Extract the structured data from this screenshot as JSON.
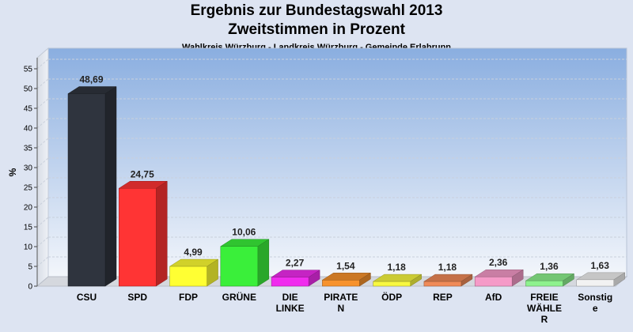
{
  "chart_data": {
    "type": "bar",
    "title": [
      "Ergebnis zur Bundestagswahl 2013",
      "Zweitstimmen in Prozent"
    ],
    "subtitle": "Wahlkreis Würzburg - Landkreis Würzburg - Gemeinde Erlabrunn",
    "ylabel": "%",
    "ylim": [
      0,
      55
    ],
    "yticks": [
      0,
      5,
      10,
      15,
      20,
      25,
      30,
      35,
      40,
      45,
      50,
      55
    ],
    "grid": true,
    "legend": "none",
    "bars": [
      {
        "category": [
          "CSU"
        ],
        "value": 48.69,
        "label": "48,69",
        "color": "#2f343e"
      },
      {
        "category": [
          "SPD"
        ],
        "value": 24.75,
        "label": "24,75",
        "color": "#ff3434"
      },
      {
        "category": [
          "FDP"
        ],
        "value": 4.99,
        "label": "4,99",
        "color": "#ffff33"
      },
      {
        "category": [
          "GRÜNE"
        ],
        "value": 10.06,
        "label": "10,06",
        "color": "#3aef3a"
      },
      {
        "category": [
          "DIE",
          "LINKE"
        ],
        "value": 2.27,
        "label": "2,27",
        "color": "#f02cee"
      },
      {
        "category": [
          "PIRATE",
          "N"
        ],
        "value": 1.54,
        "label": "1,54",
        "color": "#f7922d"
      },
      {
        "category": [
          "ÖDP"
        ],
        "value": 1.18,
        "label": "1,18",
        "color": "#f8f840"
      },
      {
        "category": [
          "REP"
        ],
        "value": 1.18,
        "label": "1,18",
        "color": "#f08a58"
      },
      {
        "category": [
          "AfD"
        ],
        "value": 2.36,
        "label": "2,36",
        "color": "#f59ac8"
      },
      {
        "category": [
          "FREIE",
          "WÄHLE",
          "R"
        ],
        "value": 1.36,
        "label": "1,36",
        "color": "#8ef28e"
      },
      {
        "category": [
          "Sonstig",
          "e"
        ],
        "value": 1.63,
        "label": "1,63",
        "color": "#f2f2f2"
      }
    ]
  }
}
